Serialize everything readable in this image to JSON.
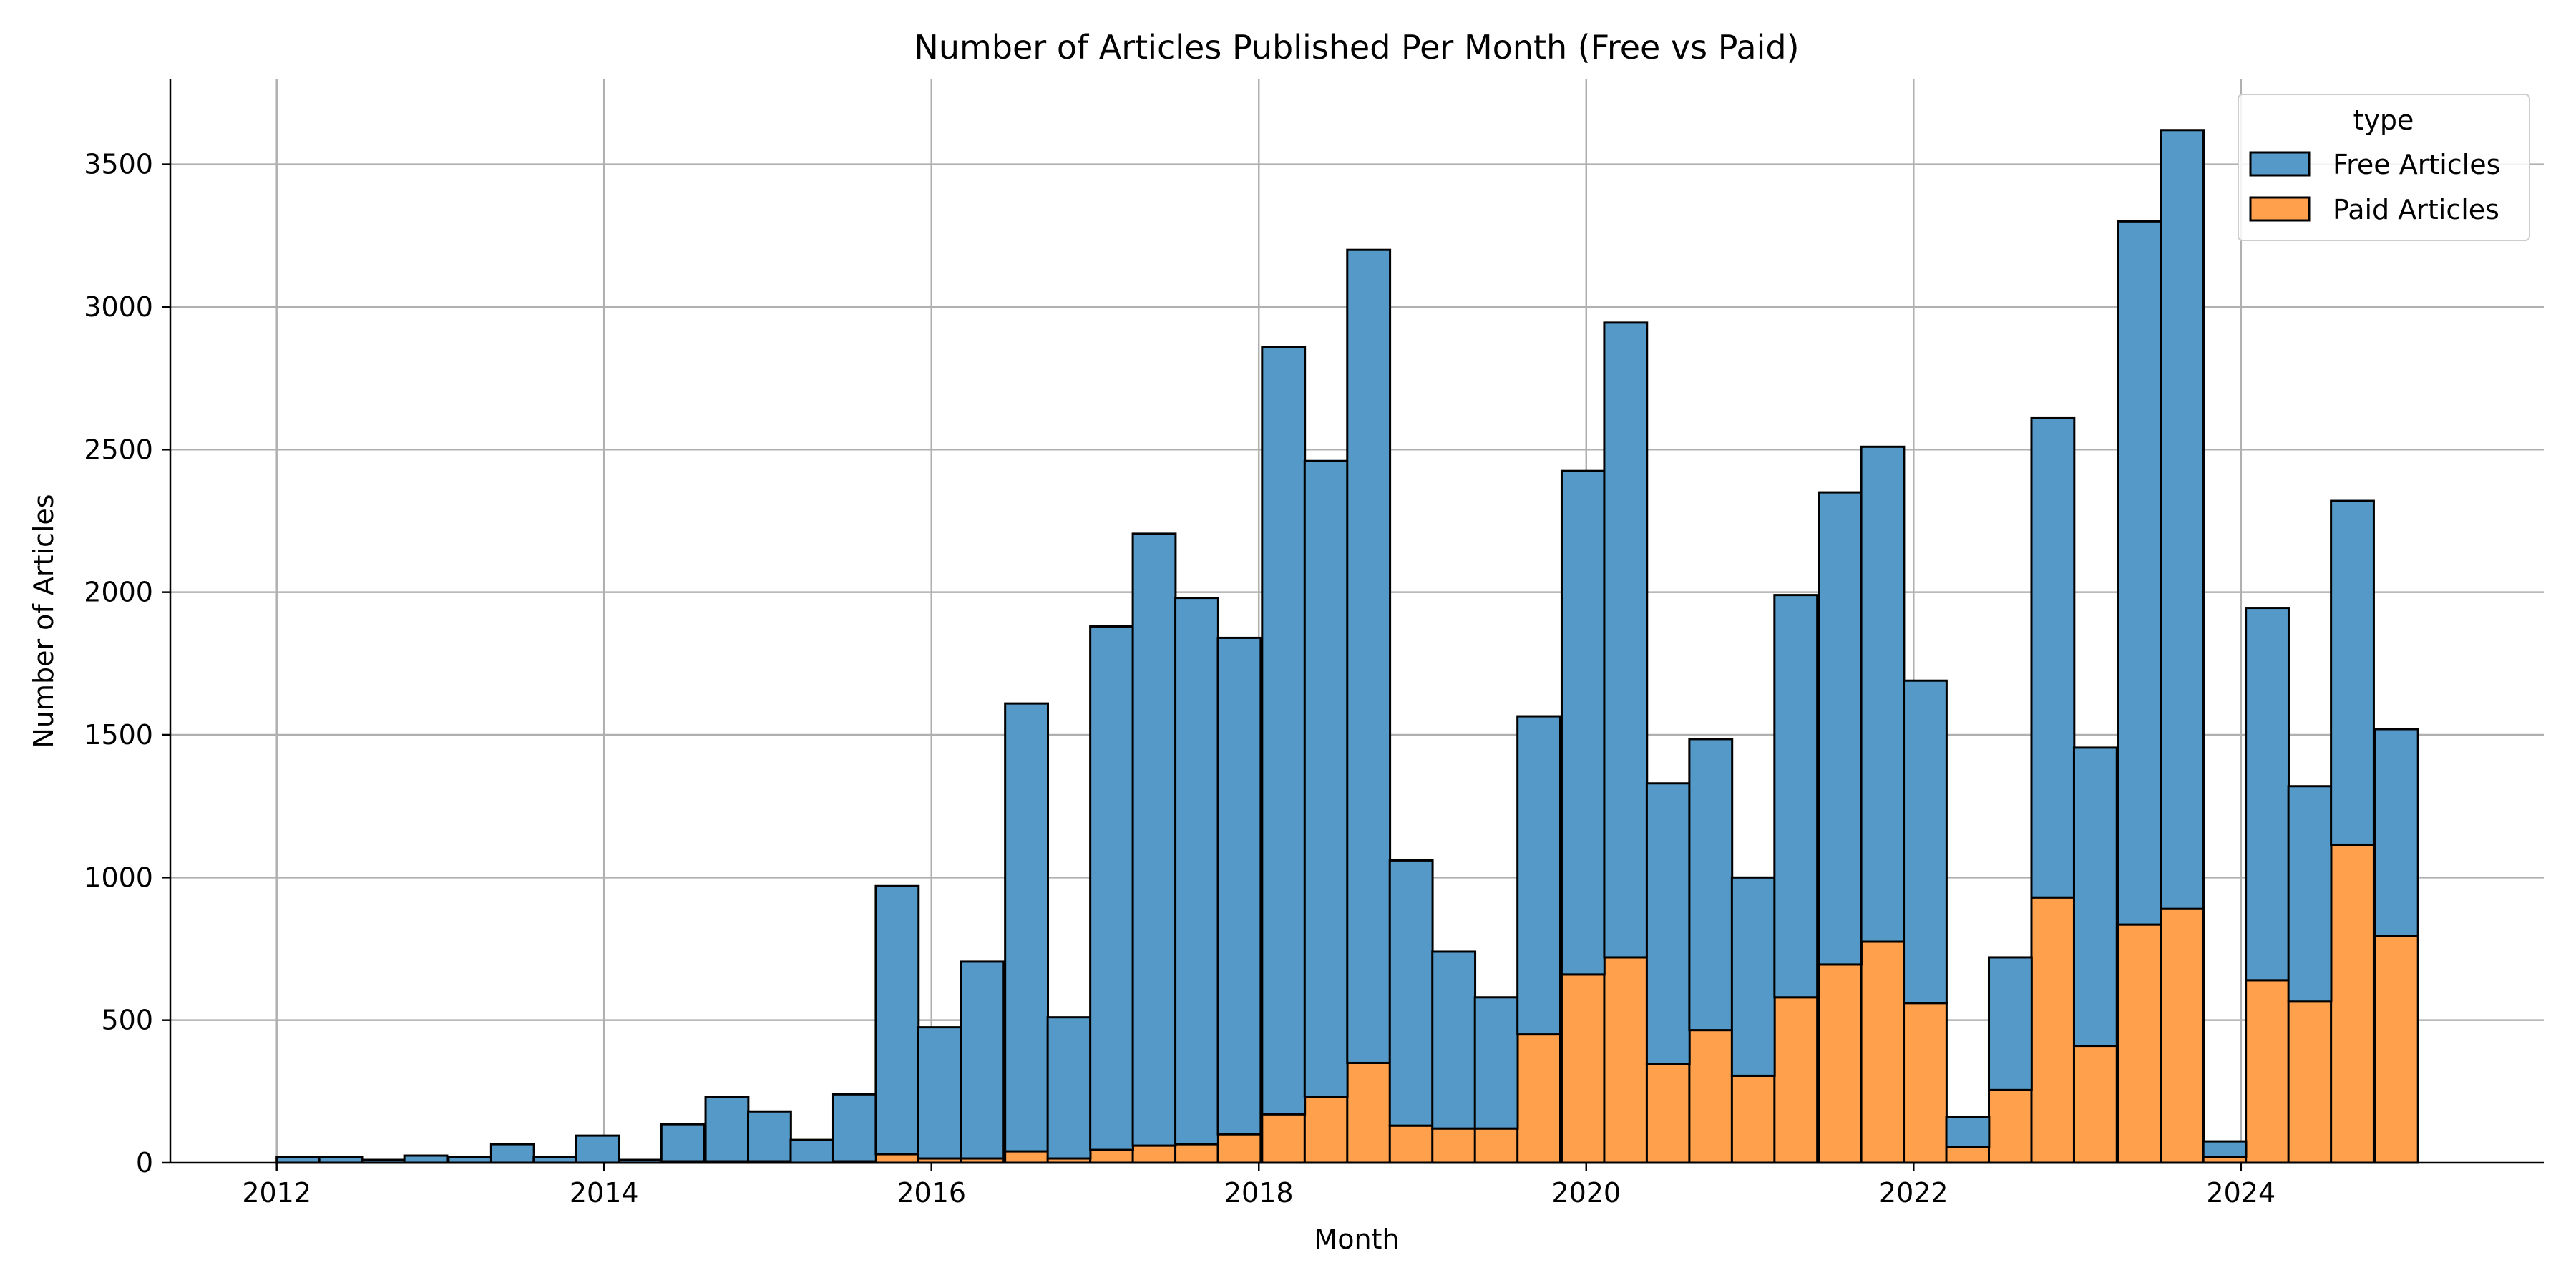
{
  "chart_data": {
    "type": "bar",
    "stacked": true,
    "title": "Number of Articles Published Per Month (Free vs Paid)",
    "xlabel": "Month",
    "ylabel": "Number of Articles",
    "xlim": [
      2011.35,
      2025.85
    ],
    "ylim": [
      0,
      3800
    ],
    "bin_width_years": 0.2615,
    "x_ticks": [
      2012,
      2014,
      2016,
      2018,
      2020,
      2022,
      2024
    ],
    "x_tick_labels": [
      "2012",
      "2014",
      "2016",
      "2018",
      "2020",
      "2022",
      "2024"
    ],
    "y_ticks": [
      0,
      500,
      1000,
      1500,
      2000,
      2500,
      3000,
      3500
    ],
    "y_tick_labels": [
      "0",
      "500",
      "1000",
      "1500",
      "2000",
      "2500",
      "3000",
      "3500"
    ],
    "grid": true,
    "legend": {
      "title": "type",
      "placement": "top-right"
    },
    "x": [
      2012.0,
      2012.26,
      2012.52,
      2012.78,
      2013.05,
      2013.31,
      2013.57,
      2013.83,
      2014.09,
      2014.35,
      2014.62,
      2014.88,
      2015.14,
      2015.4,
      2015.66,
      2015.92,
      2016.18,
      2016.45,
      2016.71,
      2016.97,
      2017.23,
      2017.49,
      2017.75,
      2018.02,
      2018.28,
      2018.54,
      2018.8,
      2019.06,
      2019.32,
      2019.58,
      2019.85,
      2020.11,
      2020.37,
      2020.63,
      2020.89,
      2021.15,
      2021.42,
      2021.68,
      2021.94,
      2022.2,
      2022.46,
      2022.72,
      2022.98,
      2023.25,
      2023.51,
      2023.77,
      2024.03,
      2024.29,
      2024.55,
      2024.82
    ],
    "series": [
      {
        "name": "Free Articles",
        "color": "#5499c7",
        "values": [
          20,
          20,
          10,
          25,
          20,
          65,
          20,
          95,
          10,
          130,
          225,
          175,
          80,
          235,
          940,
          460,
          690,
          1570,
          495,
          1835,
          2145,
          1915,
          1740,
          2690,
          2230,
          2850,
          930,
          620,
          460,
          1115,
          1765,
          2225,
          985,
          1020,
          695,
          1410,
          1655,
          1735,
          1130,
          105,
          465,
          1680,
          1045,
          2465,
          2730,
          55,
          1305,
          755,
          1205,
          725
        ]
      },
      {
        "name": "Paid Articles",
        "color": "#ffa04d",
        "values": [
          0,
          0,
          0,
          0,
          0,
          0,
          0,
          0,
          0,
          5,
          5,
          5,
          0,
          5,
          30,
          15,
          15,
          40,
          15,
          45,
          60,
          65,
          100,
          170,
          230,
          350,
          130,
          120,
          120,
          450,
          660,
          720,
          345,
          465,
          305,
          580,
          695,
          775,
          560,
          55,
          255,
          930,
          410,
          835,
          890,
          20,
          640,
          565,
          1115,
          795
        ]
      }
    ]
  }
}
